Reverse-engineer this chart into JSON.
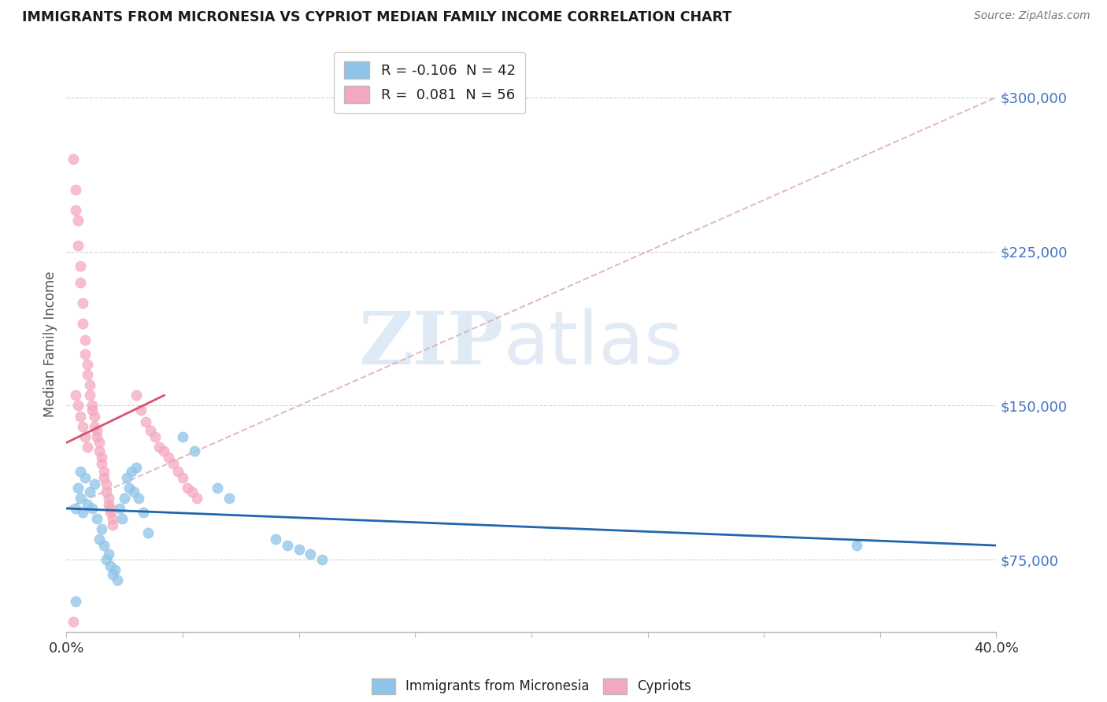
{
  "title": "IMMIGRANTS FROM MICRONESIA VS CYPRIOT MEDIAN FAMILY INCOME CORRELATION CHART",
  "source": "Source: ZipAtlas.com",
  "ylabel": "Median Family Income",
  "yticks": [
    75000,
    150000,
    225000,
    300000
  ],
  "ytick_labels": [
    "$75,000",
    "$150,000",
    "$225,000",
    "$300,000"
  ],
  "xlim": [
    0.0,
    0.4
  ],
  "ylim": [
    40000,
    320000
  ],
  "watermark_zip": "ZIP",
  "watermark_atlas": "atlas",
  "legend_blue_r": "-0.106",
  "legend_blue_n": "42",
  "legend_pink_r": "0.081",
  "legend_pink_n": "56",
  "legend_label_blue": "Immigrants from Micronesia",
  "legend_label_pink": "Cypriots",
  "blue_color": "#8ec4e8",
  "pink_color": "#f4a8bf",
  "blue_line_color": "#2166ac",
  "pink_line_color": "#d9536e",
  "pink_dash_color": "#d9aab8",
  "tick_color": "#4472c4",
  "background_color": "#ffffff",
  "blue_scatter_x": [
    0.004,
    0.006,
    0.005,
    0.007,
    0.009,
    0.008,
    0.006,
    0.01,
    0.012,
    0.011,
    0.013,
    0.015,
    0.014,
    0.016,
    0.018,
    0.017,
    0.019,
    0.021,
    0.02,
    0.022,
    0.024,
    0.023,
    0.025,
    0.027,
    0.026,
    0.028,
    0.03,
    0.029,
    0.031,
    0.033,
    0.035,
    0.05,
    0.055,
    0.065,
    0.07,
    0.09,
    0.095,
    0.1,
    0.105,
    0.11,
    0.34,
    0.004
  ],
  "blue_scatter_y": [
    100000,
    105000,
    110000,
    98000,
    102000,
    115000,
    118000,
    108000,
    112000,
    100000,
    95000,
    90000,
    85000,
    82000,
    78000,
    75000,
    72000,
    70000,
    68000,
    65000,
    95000,
    100000,
    105000,
    110000,
    115000,
    118000,
    120000,
    108000,
    105000,
    98000,
    88000,
    135000,
    128000,
    110000,
    105000,
    85000,
    82000,
    80000,
    78000,
    75000,
    82000,
    55000
  ],
  "pink_scatter_x": [
    0.003,
    0.004,
    0.004,
    0.005,
    0.005,
    0.006,
    0.006,
    0.007,
    0.007,
    0.008,
    0.008,
    0.009,
    0.009,
    0.01,
    0.01,
    0.011,
    0.011,
    0.012,
    0.012,
    0.013,
    0.013,
    0.014,
    0.014,
    0.015,
    0.015,
    0.016,
    0.016,
    0.017,
    0.017,
    0.018,
    0.018,
    0.019,
    0.019,
    0.02,
    0.02,
    0.03,
    0.032,
    0.034,
    0.036,
    0.038,
    0.04,
    0.042,
    0.044,
    0.046,
    0.048,
    0.05,
    0.052,
    0.054,
    0.056,
    0.004,
    0.005,
    0.006,
    0.007,
    0.008,
    0.009,
    0.003
  ],
  "pink_scatter_y": [
    270000,
    255000,
    245000,
    240000,
    228000,
    218000,
    210000,
    200000,
    190000,
    182000,
    175000,
    170000,
    165000,
    160000,
    155000,
    150000,
    148000,
    145000,
    140000,
    138000,
    135000,
    132000,
    128000,
    125000,
    122000,
    118000,
    115000,
    112000,
    108000,
    105000,
    102000,
    100000,
    98000,
    95000,
    92000,
    155000,
    148000,
    142000,
    138000,
    135000,
    130000,
    128000,
    125000,
    122000,
    118000,
    115000,
    110000,
    108000,
    105000,
    155000,
    150000,
    145000,
    140000,
    135000,
    130000,
    45000
  ],
  "xtick_positions": [
    0.0,
    0.05,
    0.1,
    0.15,
    0.2,
    0.25,
    0.3,
    0.35,
    0.4
  ],
  "xtick_labels_show": [
    "0.0%",
    "",
    "",
    "",
    "",
    "",
    "",
    "",
    "40.0%"
  ]
}
